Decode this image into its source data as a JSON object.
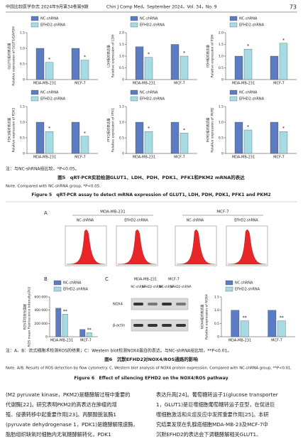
{
  "header": {
    "journal_cn": "中国比较医学杂志 2024年9月第34卷第9期",
    "journal_en": "Chin J Comp Med，September 2024，Vol. 34，No. 9",
    "page": "73"
  },
  "chart_data": [
    {
      "type": "bar",
      "y_label_cn": "GLUT1相对表达量",
      "y_label_en": "Relative expression of GLUT1/GAPDH",
      "categories": [
        "MDA-MB-231",
        "MCF-7"
      ],
      "series": [
        {
          "name": "NC-shRNA",
          "color": "#5b7cc2",
          "values": [
            1.0,
            1.0
          ]
        },
        {
          "name": "EFHD2-shRNA",
          "color": "#a6dbe3",
          "values": [
            0.55,
            0.62
          ]
        }
      ],
      "annotations": [
        "*",
        "*"
      ],
      "ylim": [
        0,
        1.5
      ],
      "yticks": [
        0,
        0.5,
        {
          "value": 1,
          "label": "1.0"
        },
        1.5
      ]
    },
    {
      "type": "bar",
      "y_label_cn": "LDH相对表达量",
      "y_label_en": "Relative expression of LDH",
      "categories": [
        "MDA-MB-231",
        "MCF-7"
      ],
      "series": [
        {
          "name": "NC-shRNA",
          "color": "#5b7cc2",
          "values": [
            1.4,
            1.5
          ]
        },
        {
          "name": "EFHD2-shRNA",
          "color": "#a6dbe3",
          "values": [
            0.95,
            1.0
          ]
        }
      ],
      "annotations": [
        "*",
        "*"
      ],
      "ylim": [
        0,
        2
      ],
      "yticks": [
        0,
        0.5,
        {
          "value": 1,
          "label": "1.0"
        },
        1.5,
        {
          "value": 2,
          "label": "2.0"
        }
      ]
    },
    {
      "type": "bar",
      "y_label_cn": "PDH相对表达量",
      "y_label_en": "Relative expression of PDH",
      "categories": [
        "MDA-MB-231",
        "MCF-7"
      ],
      "series": [
        {
          "name": "NC-shRNA",
          "color": "#5b7cc2",
          "values": [
            1.0,
            1.0
          ]
        },
        {
          "name": "EFHD2-shRNA",
          "color": "#a6dbe3",
          "values": [
            1.3,
            1.55
          ]
        }
      ],
      "annotations": [
        "*",
        "*"
      ],
      "ylim": [
        0,
        2
      ],
      "yticks": [
        0,
        0.5,
        {
          "value": 1,
          "label": "1.0"
        },
        1.5,
        {
          "value": 2,
          "label": "2.0"
        }
      ]
    },
    {
      "type": "bar",
      "y_label_cn": "PDK1相对表达量",
      "y_label_en": "Relative expression of PDK1",
      "categories": [
        "MDA-MB-231",
        "MCF-7"
      ],
      "series": [
        {
          "name": "NC-shRNA",
          "color": "#5b7cc2",
          "values": [
            1.0,
            1.0
          ]
        },
        {
          "name": "EFHD2-shRNA",
          "color": "#a6dbe3",
          "values": [
            0.7,
            0.55
          ]
        }
      ],
      "annotations": [
        "*",
        "*"
      ],
      "ylim": [
        0,
        1.5
      ],
      "yticks": [
        0,
        0.5,
        {
          "value": 1,
          "label": "1.0"
        },
        1.5
      ]
    },
    {
      "type": "bar",
      "y_label_cn": "PFK1相对表达量",
      "y_label_en": "Relative expression of PFK1",
      "categories": [
        "MDA-MB-231",
        "MCF-7"
      ],
      "series": [
        {
          "name": "NC-shRNA",
          "color": "#5b7cc2",
          "values": [
            1.0,
            1.0
          ]
        },
        {
          "name": "EFHD2-shRNA",
          "color": "#a6dbe3",
          "values": [
            0.7,
            0.65
          ]
        }
      ],
      "annotations": [
        "*",
        "*"
      ],
      "ylim": [
        0,
        1.5
      ],
      "yticks": [
        0,
        0.5,
        {
          "value": 1,
          "label": "1.0"
        },
        1.5
      ]
    },
    {
      "type": "bar",
      "y_label_cn": "PKM2相对表达量",
      "y_label_en": "Relative expression of PKM2",
      "categories": [
        "MDA-MB-231",
        "MCF-7"
      ],
      "series": [
        {
          "name": "NC-shRNA",
          "color": "#5b7cc2",
          "values": [
            1.0,
            1.0
          ]
        },
        {
          "name": "EFHD2-shRNA",
          "color": "#a6dbe3",
          "values": [
            0.75,
            0.7
          ]
        }
      ],
      "annotations": [
        "*",
        "*"
      ],
      "ylim": [
        0,
        1.5
      ],
      "yticks": [
        0,
        0.5,
        {
          "value": 1,
          "label": "1.0"
        },
        1.5
      ]
    },
    {
      "type": "bar",
      "y_label_cn": "ROS平均荧光强度",
      "y_label_en": "ROS mean fluorescence intensity(AU)",
      "categories": [
        "MDA-MB-231",
        "MCF-7"
      ],
      "series": [
        {
          "name": "NC-shRNA",
          "color": "#5b7cc2",
          "values": [
            430000,
            110000
          ]
        },
        {
          "name": "EFHD2-shRNA",
          "color": "#a6dbe3",
          "values": [
            340000,
            60000
          ]
        }
      ],
      "annotations": [
        "**",
        "**"
      ],
      "ylim": [
        0,
        600000
      ],
      "yticks": [
        0,
        {
          "value": 200000,
          "label": "200 000"
        },
        {
          "value": 400000,
          "label": "400 000"
        },
        {
          "value": 600000,
          "label": "600 000"
        }
      ]
    },
    {
      "type": "bar",
      "y_label_cn": "NOX4相对表达量",
      "y_label_en": "Relative expression of NOX4",
      "categories": [
        "MDA-MB-231",
        "MCF-7"
      ],
      "series": [
        {
          "name": "NC-shRNA",
          "color": "#5b7cc2",
          "values": [
            1.0,
            1.0
          ]
        },
        {
          "name": "EFHD2-shRNA",
          "color": "#a6dbe3",
          "values": [
            0.6,
            0.6
          ]
        }
      ],
      "annotations": [
        "**",
        "**"
      ],
      "ylim": [
        0,
        1.5
      ],
      "yticks": [
        0,
        0.5,
        {
          "value": 1,
          "label": "1.0"
        },
        1.5
      ]
    }
  ],
  "figure5": {
    "note_cn": "注：与NC-shRNA组比较，*P<0.05。",
    "caption_cn": "图5　qRT-PCR实验检测GLUT1、LDH、PDH、PDK1、PFK1和PKM2 mRNA的表达",
    "note_en": "Note. Compared with NC-shRNA group, *P<0.05.",
    "caption_en": "Figure 5　qRT-PCR assay to detect mRNA expression of GLUT1, LDH, PDH, PDK1, PFK1 and PKM2"
  },
  "figure6": {
    "panel_a": {
      "label": "A",
      "groups": [
        {
          "title": "MDA-MB-231",
          "samples": [
            "NC-shRNA",
            "EFHD2-shRNA"
          ]
        },
        {
          "title": "MCF-7",
          "samples": [
            "NC-shRNA",
            "EFHD2-shRNA"
          ]
        }
      ]
    },
    "panel_b": {
      "label": "B"
    },
    "panel_c": {
      "label": "C",
      "groups": [
        "MDA-MB-231",
        "MCF-7"
      ],
      "lanes": [
        "NC-shRNA",
        "EFHD2-shRNA",
        "NC-shRNA",
        "EFHD2-shRNA"
      ],
      "rows": [
        "NOX4",
        "β-actin"
      ]
    },
    "note_cn": "注：A、B：流式细胞术检测ROS的结果；C：Western blot检测NOX4蛋白的表达。与NC-shRNA组比较，**P<0.01。",
    "caption_cn": "图6　沉默EFHD2对NOX4/ROS通路的影响",
    "note_en": "Note. A/B, Results of ROS detection by flow cytometry. C, Western blot analysis of NOX4 protein expression. Compared with NC-shRNA group, **P<0.01.",
    "caption_en": "Figure 6　Effect of silencing EFHD2 on the NOX4/ROS pathway"
  },
  "body": {
    "left": [
      "(M2 pyruvate kinase，PKM2)是糖酵解过程中重要的",
      "代谢酶[22]。研究表明PKM2的高表达在肿瘤的增",
      "殖、侵袭转移中起重要作用[23]。丙酮酸脱氢酶1",
      "(pyruvate dehydrogenase 1，PDK1)是糖酵解限速酶，",
      "脂肪组织缺氧时细胞内无氧糖酵解转化，PDK1"
    ],
    "right": [
      "表达升高[24]。葡萄糖转运子1(glucose transporter",
      "1，GLUT1)是巨噬细胞葡萄糖转运子亚型，在促进巨",
      "噬细胞激活和炎症反应中发挥重要作用[25]。本研",
      "究结果发现在乳腺癌细胞MDA-MB-23及MCF-7中",
      "沉默EFHD2的表达会下调糖酵解相关GLUT1、"
    ]
  }
}
